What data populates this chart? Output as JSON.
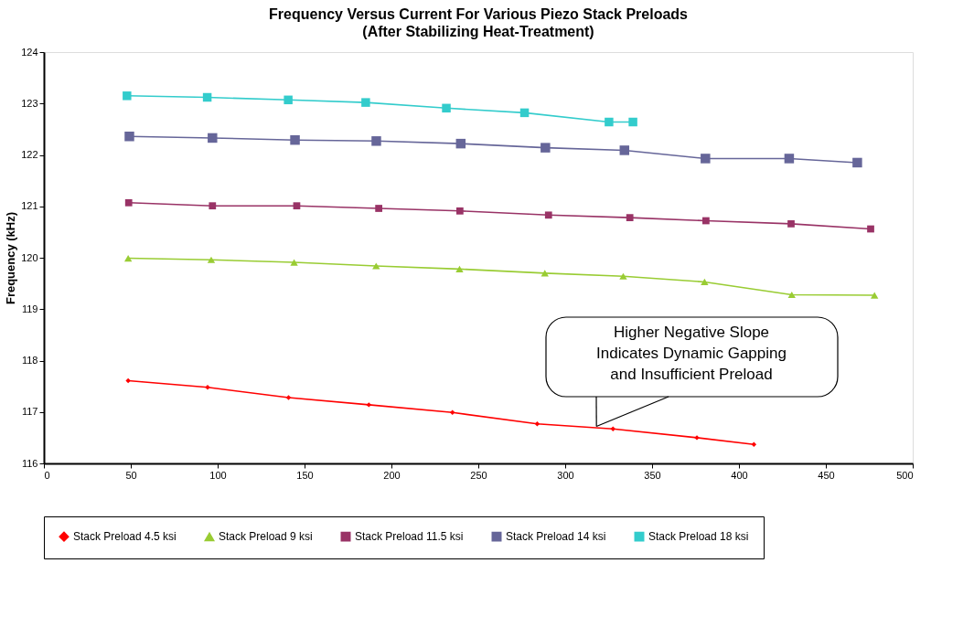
{
  "chart_data": {
    "type": "line",
    "title": "Frequency Versus Current For Various Piezo Stack Preloads",
    "subtitle": "(After Stabilizing Heat-Treatment)",
    "ylabel": "Frequency (kHz)",
    "xlim": [
      0,
      500
    ],
    "xticks": [
      0,
      50,
      100,
      150,
      200,
      250,
      300,
      350,
      400,
      450,
      500
    ],
    "ylim": [
      116,
      124
    ],
    "yticks": [
      116,
      117,
      118,
      119,
      120,
      121,
      122,
      123,
      124
    ],
    "grid": false,
    "legend": "bottom",
    "line_style": "solid",
    "annotations": [
      {
        "text": "Higher Negative Slope\nIndicates Dynamic Gapping\nand Insufficient Preload",
        "x": 318,
        "y": 116.72
      }
    ],
    "series": [
      {
        "name": "Stack Preload 4.5 ksi",
        "color": "#ff0000",
        "marker": "diamond",
        "x": [
          48.5,
          94.2,
          140.8,
          187,
          235.1,
          283.9,
          327.5,
          375.8,
          408.6
        ],
        "values": [
          117.61,
          117.48,
          117.28,
          117.14,
          116.99,
          116.77,
          116.67,
          116.5,
          116.37
        ]
      },
      {
        "name": "Stack Preload 9 ksi",
        "color": "#99cc33",
        "marker": "triangle",
        "x": [
          48.5,
          96.3,
          144,
          191.2,
          239.2,
          288.3,
          333.4,
          380.2,
          430.4,
          478
        ],
        "values": [
          119.99,
          119.96,
          119.91,
          119.84,
          119.78,
          119.7,
          119.64,
          119.53,
          119.28,
          119.27
        ]
      },
      {
        "name": "Stack Preload 11.5 ksi",
        "color": "#993366",
        "marker": "square",
        "x": [
          48.8,
          97,
          145.5,
          192.7,
          239.4,
          290.4,
          337.2,
          381,
          430,
          475.8
        ],
        "values": [
          121.07,
          121.01,
          121.01,
          120.96,
          120.91,
          120.83,
          120.78,
          120.72,
          120.66,
          120.56
        ]
      },
      {
        "name": "Stack Preload 14 ksi",
        "color": "#666699",
        "marker": "square",
        "x": [
          49.2,
          97,
          144.5,
          191.3,
          239.9,
          288.6,
          334.1,
          380.7,
          428.9,
          468.1
        ],
        "values": [
          122.36,
          122.33,
          122.29,
          122.27,
          122.22,
          122.14,
          122.09,
          121.93,
          121.93,
          121.85
        ]
      },
      {
        "name": "Stack Preload 18 ksi",
        "color": "#33cccc",
        "marker": "square",
        "x": [
          47.8,
          94,
          140.6,
          185.2,
          231.6,
          276.6,
          325.2,
          339
        ],
        "values": [
          123.15,
          123.12,
          123.07,
          123.02,
          122.91,
          122.82,
          122.64,
          122.64
        ]
      }
    ]
  }
}
